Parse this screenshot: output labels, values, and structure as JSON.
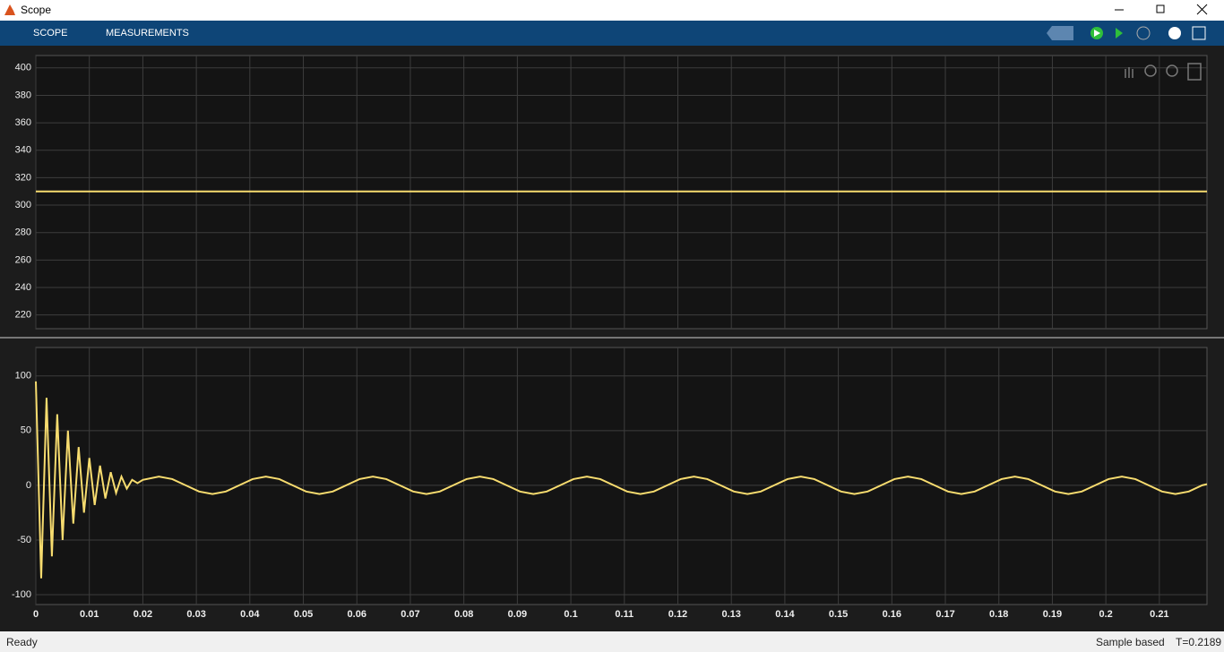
{
  "window": {
    "title": "Scope"
  },
  "tabs": [
    "SCOPE",
    "MEASUREMENTS"
  ],
  "status": {
    "left": "Ready",
    "mode": "Sample based",
    "time": "T=0.2189"
  },
  "chart_data": [
    {
      "type": "line",
      "xlim": [
        0,
        0.2189
      ],
      "ylim": [
        210,
        409
      ],
      "xticks": [
        0,
        0.01,
        0.02,
        0.03,
        0.04,
        0.05,
        0.06,
        0.07,
        0.08,
        0.09,
        0.1,
        0.11,
        0.12,
        0.13,
        0.14,
        0.15,
        0.16,
        0.17,
        0.18,
        0.19,
        0.2,
        0.21
      ],
      "yticks": [
        220,
        240,
        260,
        280,
        300,
        320,
        340,
        360,
        380,
        400
      ],
      "grid": true,
      "x": [
        0,
        0.2189
      ],
      "series": [
        {
          "color": "#f7dc6f",
          "values": [
            310,
            310
          ]
        }
      ]
    },
    {
      "type": "line",
      "xlim": [
        0,
        0.2189
      ],
      "ylim": [
        -109,
        126
      ],
      "xticks": [
        0,
        0.01,
        0.02,
        0.03,
        0.04,
        0.05,
        0.06,
        0.07,
        0.08,
        0.09,
        0.1,
        0.11,
        0.12,
        0.13,
        0.14,
        0.15,
        0.16,
        0.17,
        0.18,
        0.19,
        0.2,
        0.21
      ],
      "yticks": [
        -100,
        -50,
        0,
        50,
        100
      ],
      "grid": true,
      "x": [
        0,
        0.001,
        0.002,
        0.003,
        0.004,
        0.005,
        0.006,
        0.007,
        0.008,
        0.009,
        0.01,
        0.011,
        0.012,
        0.013,
        0.014,
        0.015,
        0.016,
        0.017,
        0.018,
        0.019,
        0.02,
        0.023,
        0.0255,
        0.028,
        0.0305,
        0.033,
        0.0355,
        0.038,
        0.0405,
        0.043,
        0.0455,
        0.048,
        0.0505,
        0.053,
        0.0555,
        0.058,
        0.0605,
        0.063,
        0.0655,
        0.068,
        0.0705,
        0.073,
        0.0755,
        0.078,
        0.0805,
        0.083,
        0.0855,
        0.088,
        0.0905,
        0.093,
        0.0955,
        0.098,
        0.1005,
        0.103,
        0.1055,
        0.108,
        0.1105,
        0.113,
        0.1155,
        0.118,
        0.1205,
        0.123,
        0.1255,
        0.128,
        0.1305,
        0.133,
        0.1355,
        0.138,
        0.1405,
        0.143,
        0.1455,
        0.148,
        0.1505,
        0.153,
        0.1555,
        0.158,
        0.1605,
        0.163,
        0.1655,
        0.168,
        0.1705,
        0.173,
        0.1755,
        0.178,
        0.1805,
        0.183,
        0.1855,
        0.188,
        0.1905,
        0.193,
        0.1955,
        0.198,
        0.2005,
        0.203,
        0.2055,
        0.208,
        0.2105,
        0.213,
        0.2155,
        0.218,
        0.2189
      ],
      "series": [
        {
          "color": "#f7dc6f",
          "values": [
            95,
            -85,
            80,
            -65,
            65,
            -50,
            50,
            -35,
            35,
            -25,
            25,
            -18,
            18,
            -12,
            12,
            -7,
            8,
            -3,
            5,
            2,
            5,
            8,
            5.7,
            0,
            -5.7,
            -8,
            -5.7,
            0,
            5.7,
            8,
            5.7,
            0,
            -5.7,
            -8,
            -5.7,
            0,
            5.7,
            8,
            5.7,
            0,
            -5.7,
            -8,
            -5.7,
            0,
            5.7,
            8,
            5.7,
            0,
            -5.7,
            -8,
            -5.7,
            0,
            5.7,
            8,
            5.7,
            0,
            -5.7,
            -8,
            -5.7,
            0,
            5.7,
            8,
            5.7,
            0,
            -5.7,
            -8,
            -5.7,
            0,
            5.7,
            8,
            5.7,
            0,
            -5.7,
            -8,
            -5.7,
            0,
            5.7,
            8,
            5.7,
            0,
            -5.7,
            -8,
            -5.7,
            0,
            5.7,
            8,
            5.7,
            0,
            -5.7,
            -8,
            -5.7,
            0,
            5.7,
            8,
            5.7,
            0,
            -5.7,
            -8,
            -5.7,
            0,
            1
          ]
        }
      ]
    }
  ]
}
